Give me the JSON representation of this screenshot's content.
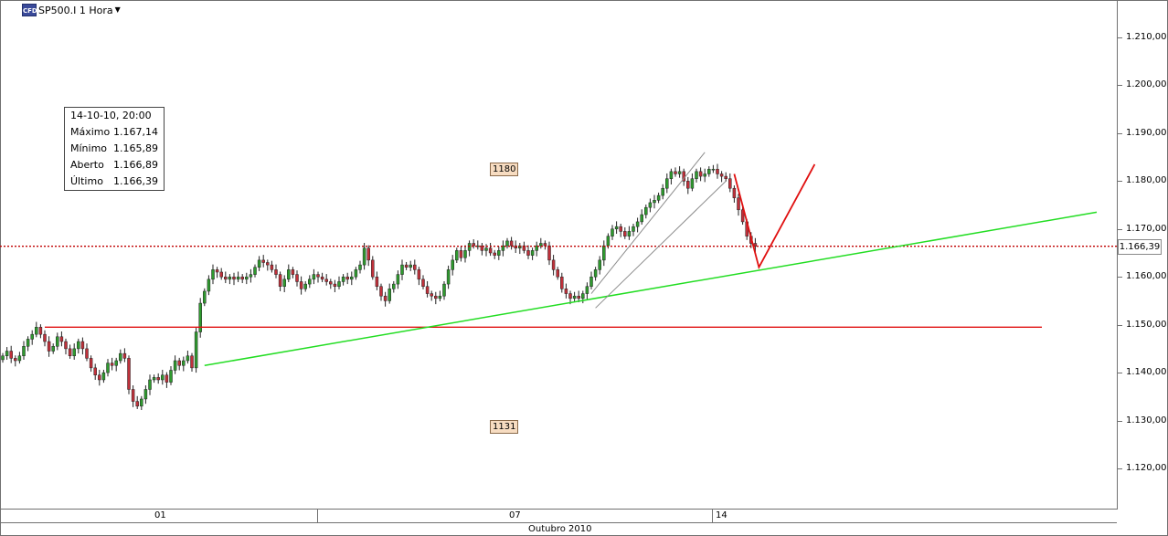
{
  "header": {
    "icon_text": "CFD",
    "symbol": "SP500.I 1 Hora",
    "dropdown_icon": "chevron-down-icon"
  },
  "info_box": {
    "datetime": "14-10-10, 20:00",
    "rows": [
      {
        "label": "Máximo",
        "value": "1.167,14"
      },
      {
        "label": "Mínimo",
        "value": "1.165,89"
      },
      {
        "label": "Aberto",
        "value": "1.166,89"
      },
      {
        "label": "Último",
        "value": "1.166,39"
      }
    ]
  },
  "level_tags": {
    "upper": "1180",
    "lower": "1131"
  },
  "last_price_tag": "1.166,39",
  "date_axis": {
    "ticks": [
      "01",
      "07",
      "14"
    ],
    "month": "Outubro 2010"
  },
  "colors": {
    "bull": "#2e9a2e",
    "bear": "#c0303a",
    "trendline": "#22dd22",
    "support": "#e01010",
    "projection": "#e01010",
    "last_price_line": "#c00000",
    "channel": "#8c8c8c"
  },
  "chart_data": {
    "type": "candlestick",
    "symbol": "SP500.I",
    "timeframe": "1 Hora",
    "y_range": [
      1111,
      1216
    ],
    "y_ticks": [
      {
        "value": 1120,
        "label": "1.120,00"
      },
      {
        "value": 1130,
        "label": "1.130,00"
      },
      {
        "value": 1140,
        "label": "1.140,00"
      },
      {
        "value": 1150,
        "label": "1.150,00"
      },
      {
        "value": 1160,
        "label": "1.160,00"
      },
      {
        "value": 1170,
        "label": "1.170,00"
      },
      {
        "value": 1180,
        "label": "1.180,00"
      },
      {
        "value": 1190,
        "label": "1.190,00"
      },
      {
        "value": 1200,
        "label": "1.200,00"
      },
      {
        "value": 1210,
        "label": "1.210,00"
      }
    ],
    "closes": [
      1143.5,
      1144.5,
      1143.0,
      1142.5,
      1143.5,
      1145.5,
      1147.0,
      1148.0,
      1149.5,
      1148.0,
      1146.5,
      1144.5,
      1145.5,
      1147.5,
      1146.5,
      1145.0,
      1143.5,
      1145.0,
      1146.5,
      1145.0,
      1143.0,
      1141.0,
      1139.5,
      1138.5,
      1140.0,
      1142.0,
      1141.5,
      1142.5,
      1144.0,
      1143.0,
      1136.5,
      1134.0,
      1133.0,
      1134.5,
      1136.5,
      1138.5,
      1139.0,
      1138.5,
      1139.5,
      1138.0,
      1140.5,
      1142.5,
      1141.5,
      1142.5,
      1143.5,
      1141.0,
      1148.5,
      1154.5,
      1157.0,
      1159.5,
      1161.5,
      1161.0,
      1160.0,
      1159.5,
      1160.0,
      1159.5,
      1160.0,
      1159.5,
      1160.0,
      1160.5,
      1162.0,
      1163.5,
      1163.0,
      1162.5,
      1161.5,
      1160.5,
      1158.0,
      1159.5,
      1161.5,
      1160.5,
      1159.0,
      1157.5,
      1158.5,
      1159.5,
      1160.5,
      1160.0,
      1159.5,
      1159.0,
      1158.5,
      1158.0,
      1159.0,
      1160.0,
      1159.5,
      1160.0,
      1161.5,
      1162.5,
      1166.0,
      1163.5,
      1160.0,
      1158.0,
      1156.0,
      1155.0,
      1157.5,
      1158.5,
      1160.5,
      1162.5,
      1162.0,
      1162.5,
      1161.5,
      1159.5,
      1158.0,
      1156.5,
      1156.0,
      1155.5,
      1156.0,
      1158.5,
      1161.5,
      1163.5,
      1165.5,
      1164.0,
      1165.5,
      1167.0,
      1166.5,
      1166.5,
      1165.5,
      1166.0,
      1165.0,
      1164.5,
      1165.5,
      1166.5,
      1167.5,
      1166.5,
      1166.0,
      1166.5,
      1165.5,
      1164.5,
      1165.5,
      1166.5,
      1167.0,
      1166.5,
      1163.5,
      1161.5,
      1160.0,
      1157.5,
      1156.5,
      1155.5,
      1156.0,
      1155.5,
      1156.5,
      1158.0,
      1160.0,
      1161.5,
      1163.5,
      1166.5,
      1168.5,
      1170.0,
      1170.5,
      1169.5,
      1168.5,
      1169.5,
      1170.5,
      1171.5,
      1173.0,
      1174.5,
      1175.5,
      1176.0,
      1177.0,
      1178.5,
      1180.5,
      1182.0,
      1181.5,
      1182.0,
      1180.0,
      1178.5,
      1180.5,
      1182.0,
      1181.0,
      1181.5,
      1182.5,
      1182.5,
      1181.5,
      1181.0,
      1180.5,
      1178.5,
      1176.5,
      1174.0,
      1171.5,
      1168.5,
      1167.0,
      1166.4
    ],
    "annotations": {
      "resistance_label": 1180,
      "support_label": 1131,
      "last_price": 1166.39,
      "support_line": 1149.5,
      "uptrend_line": {
        "from": [
          1141.5,
          "Oct 01"
        ],
        "to": [
          1173.5,
          "projection"
        ]
      },
      "v_projection": {
        "from": 1181.5,
        "low": 1162.0,
        "to": 1183.5
      }
    }
  }
}
